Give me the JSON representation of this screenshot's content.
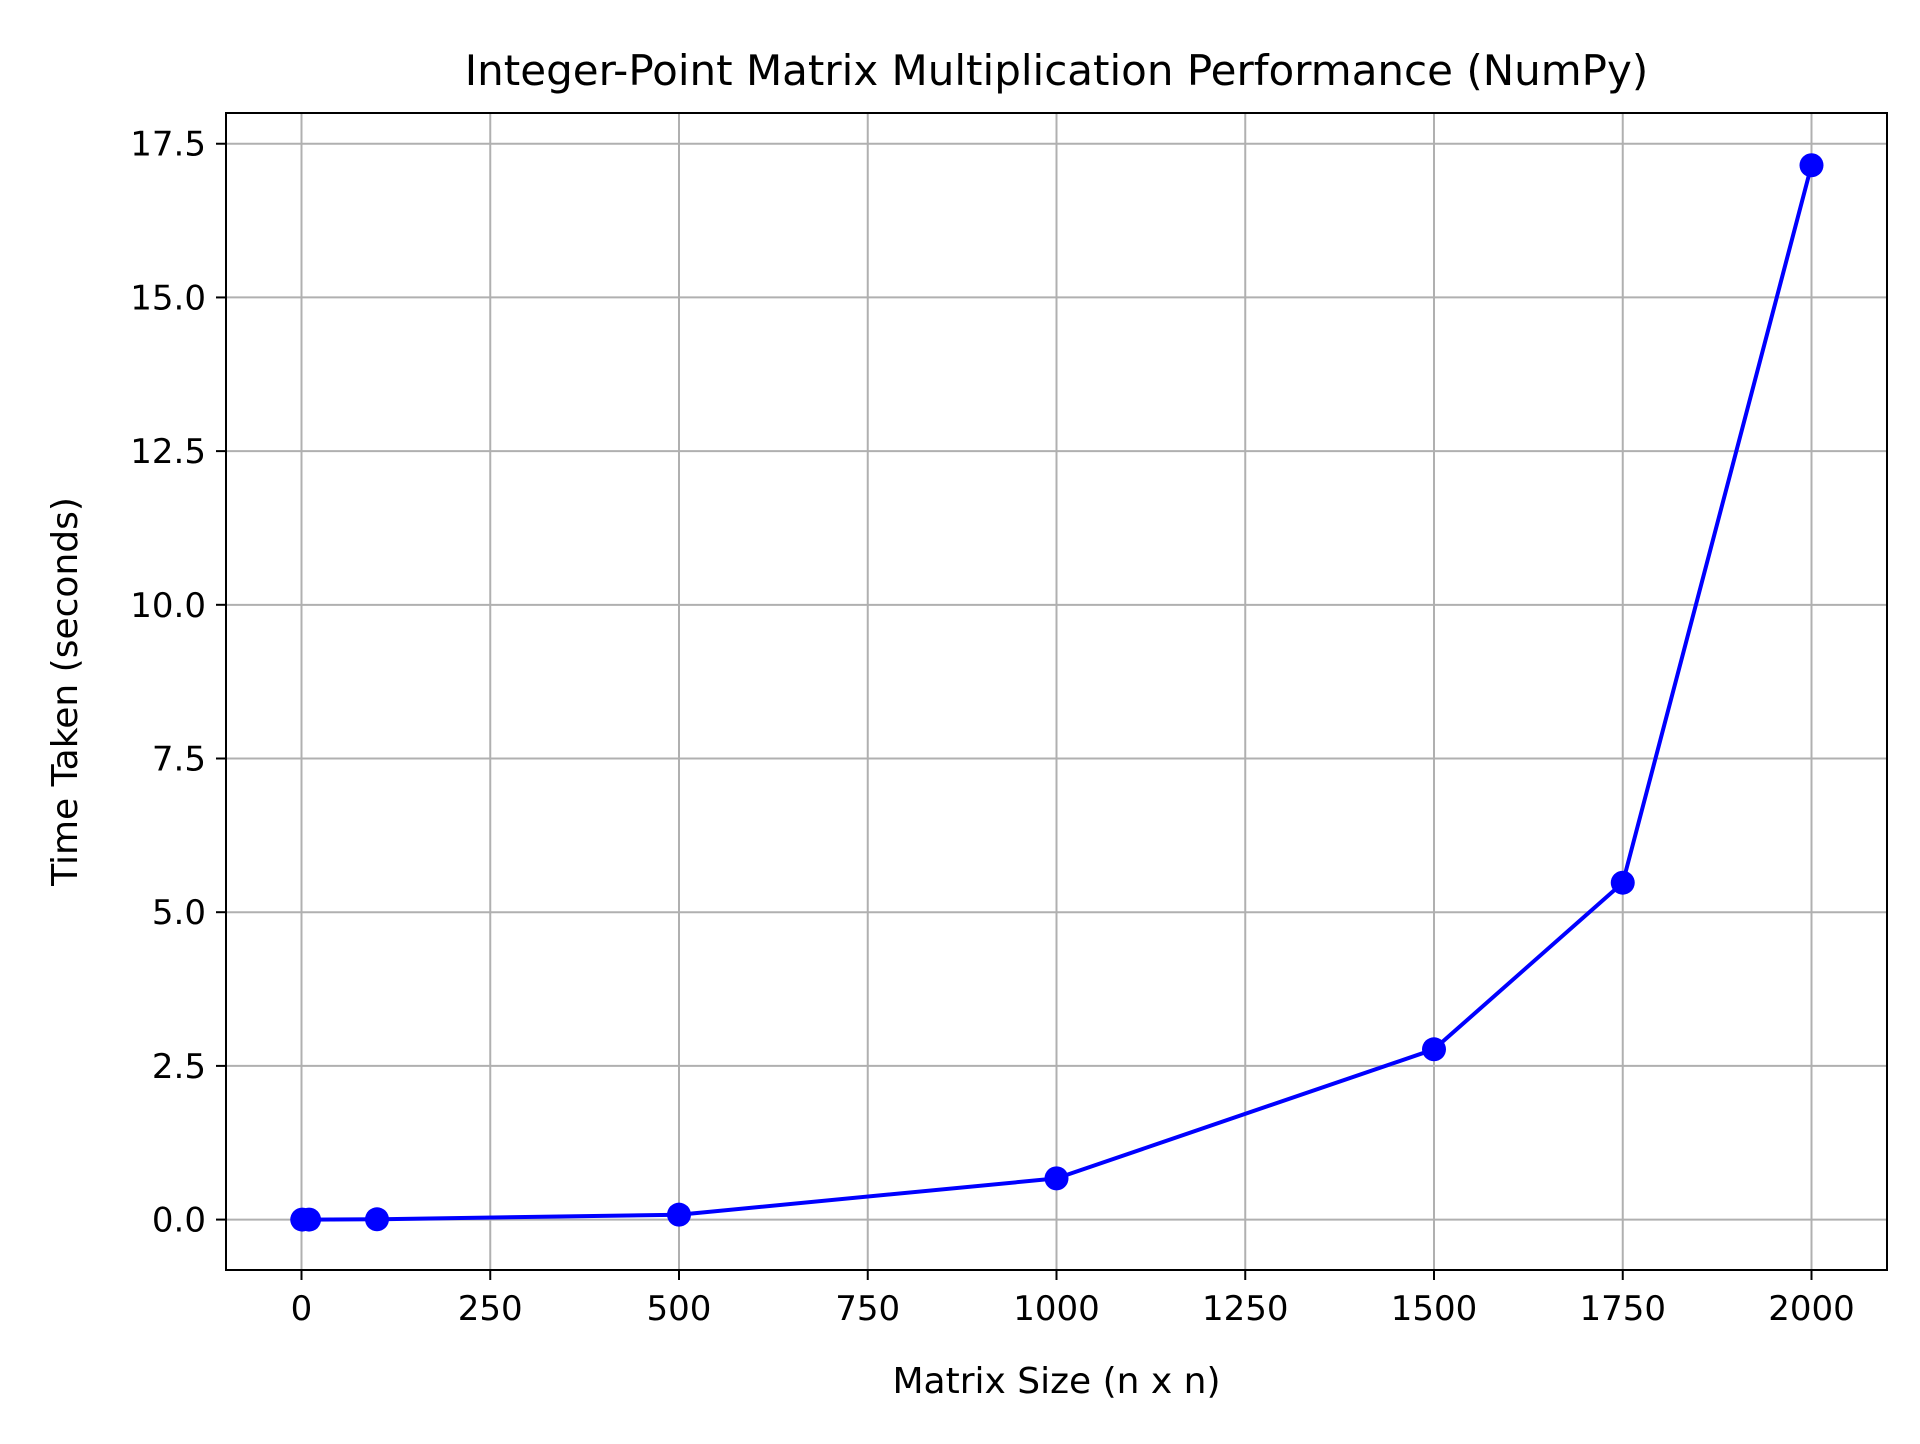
{
  "chart_data": {
    "type": "line",
    "title": "Integer-Point Matrix Multiplication Performance (NumPy)",
    "xlabel": "Matrix Size (n x n)",
    "ylabel": "Time Taken (seconds)",
    "xlim": [
      -100,
      2100
    ],
    "ylim": [
      -0.82,
      18.0
    ],
    "x_ticks": [
      0,
      250,
      500,
      750,
      1000,
      1250,
      1500,
      1750,
      2000
    ],
    "x_tick_labels": [
      "0",
      "250",
      "500",
      "750",
      "1000",
      "1250",
      "1500",
      "1750",
      "2000"
    ],
    "y_ticks": [
      0,
      2.5,
      5,
      7.5,
      10,
      12.5,
      15,
      17.5
    ],
    "y_tick_labels": [
      "0.0",
      "2.5",
      "5.0",
      "7.5",
      "10.0",
      "12.5",
      "15.0",
      "17.5"
    ],
    "grid": true,
    "series": [
      {
        "color": "#0000ff",
        "marker": "circle",
        "x": [
          1,
          10,
          100,
          500,
          1000,
          1500,
          1750,
          2000
        ],
        "y": [
          0.0,
          0.0,
          0.005,
          0.08,
          0.67,
          2.77,
          5.48,
          17.15
        ]
      }
    ]
  }
}
